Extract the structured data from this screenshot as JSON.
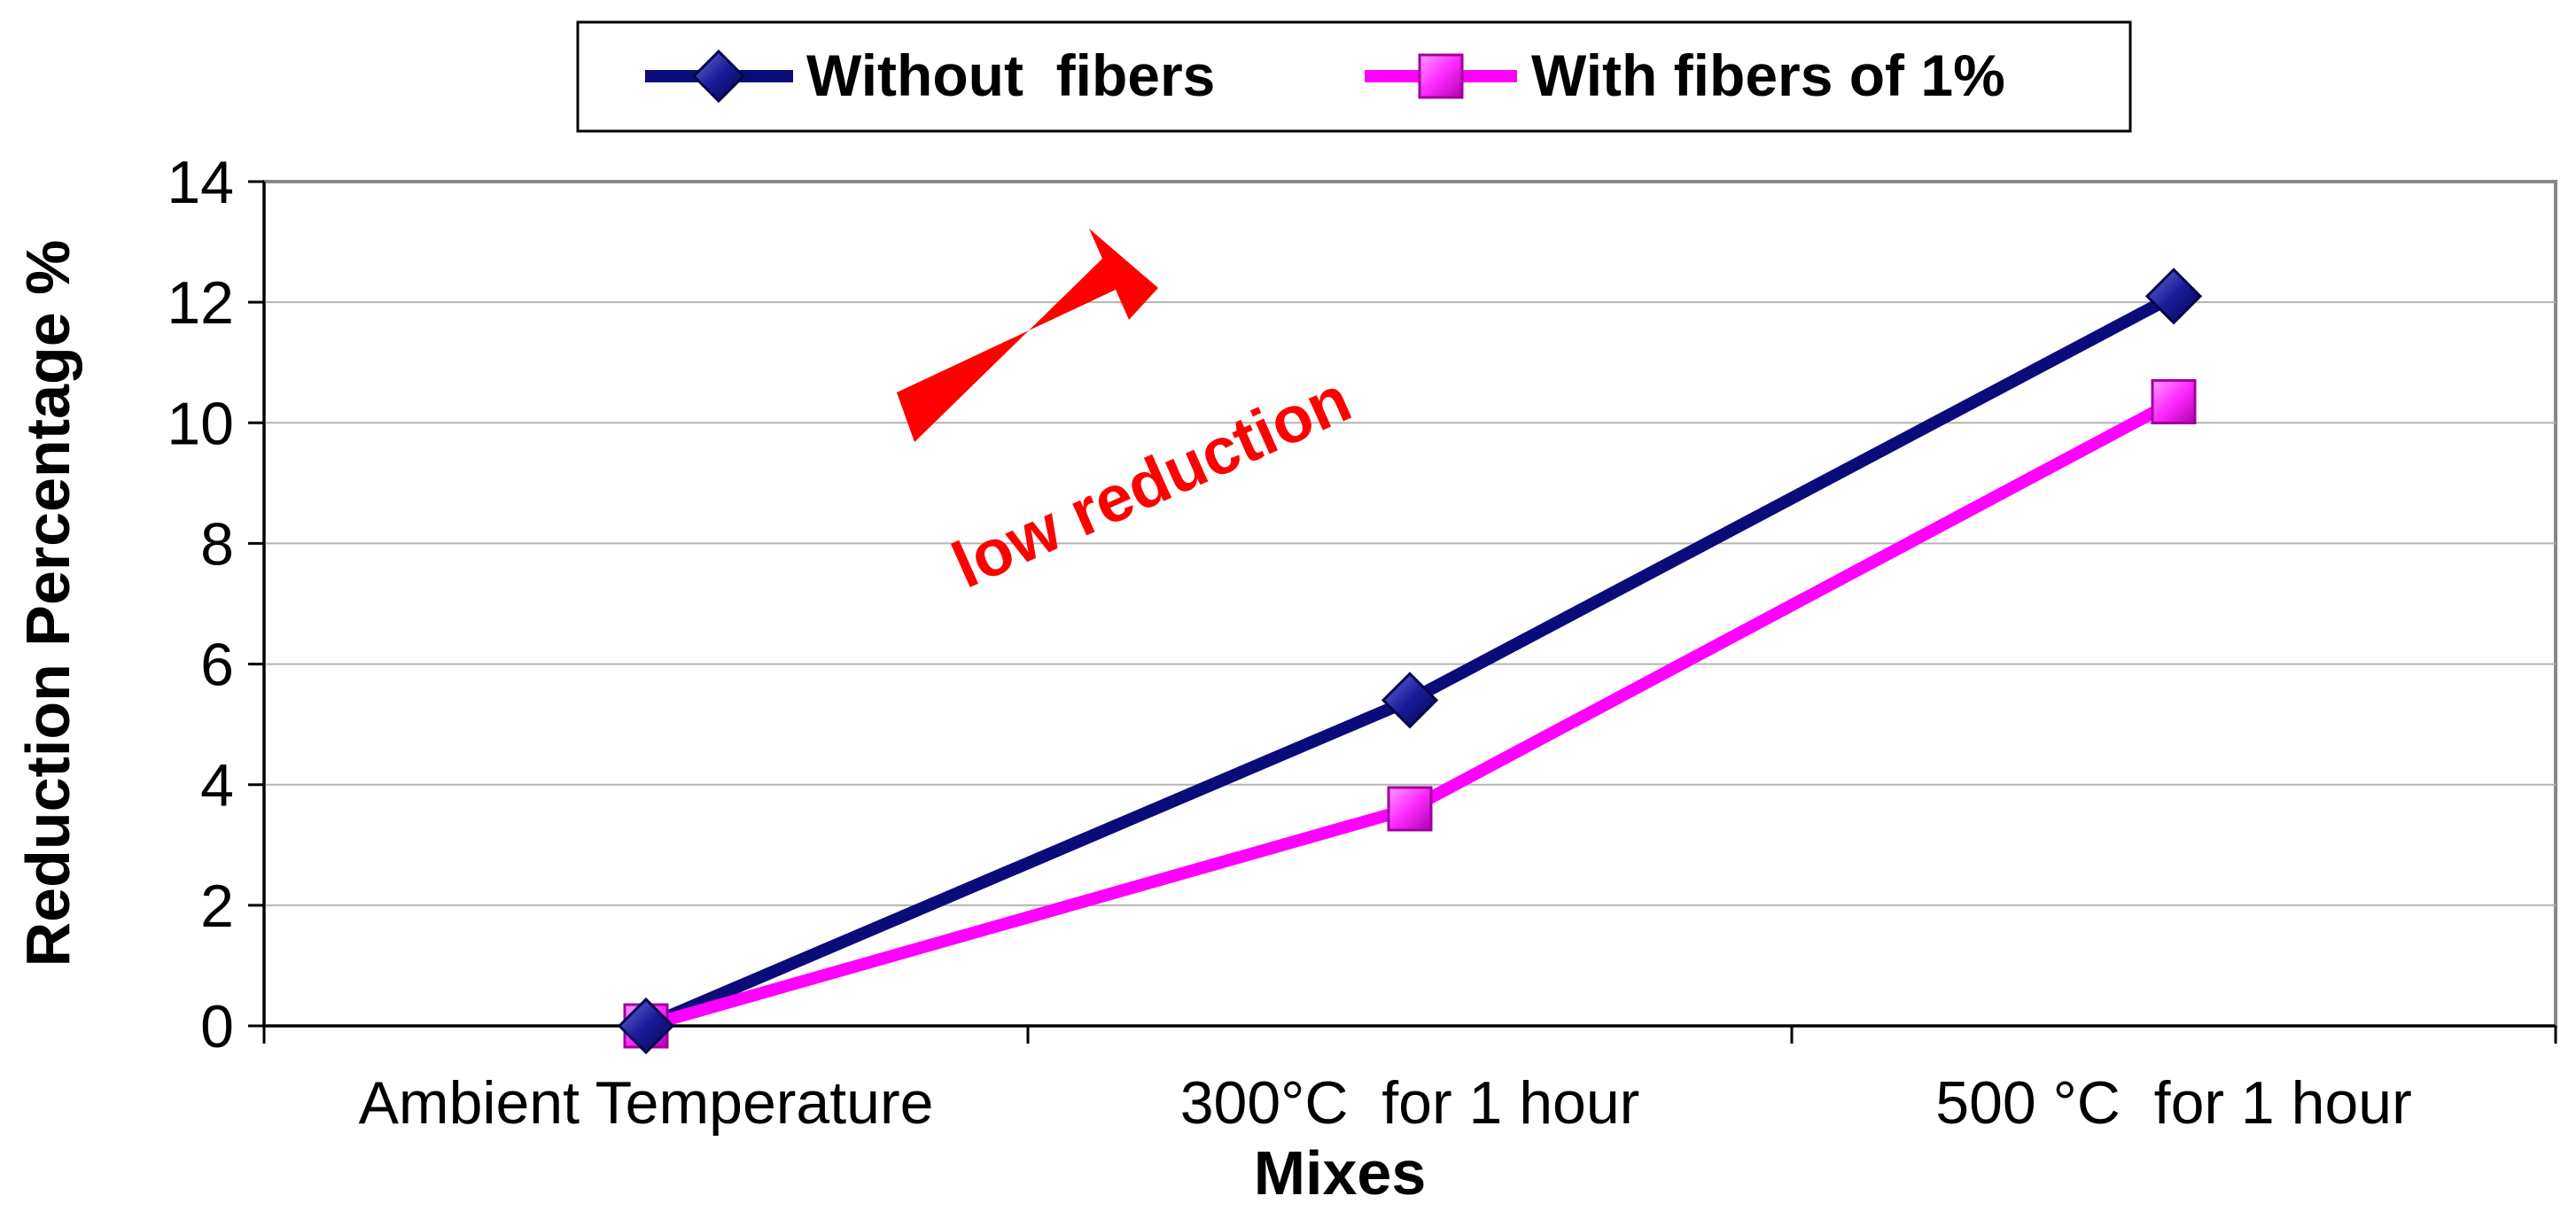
{
  "chart_data": {
    "type": "line",
    "title": "",
    "xlabel": "Mixes",
    "ylabel": "Reduction Percentage %",
    "categories": [
      "Ambient Temperature",
      "300°C  for 1 hour",
      "500 °C  for 1 hour"
    ],
    "ylim": [
      0,
      14
    ],
    "yticks": [
      0,
      2,
      4,
      6,
      8,
      10,
      12,
      14
    ],
    "grid": "horizontal",
    "legend_position": "top-center",
    "series": [
      {
        "name": "Without  fibers",
        "values": [
          0,
          5.4,
          12.1
        ],
        "color": "#0B0B7A",
        "marker": "diamond"
      },
      {
        "name": "With fibers of 1%",
        "values": [
          0,
          3.6,
          10.35
        ],
        "color": "#FF00FF",
        "marker": "square"
      }
    ],
    "annotation": {
      "text": "low reduction",
      "color": "#FF0000"
    }
  }
}
